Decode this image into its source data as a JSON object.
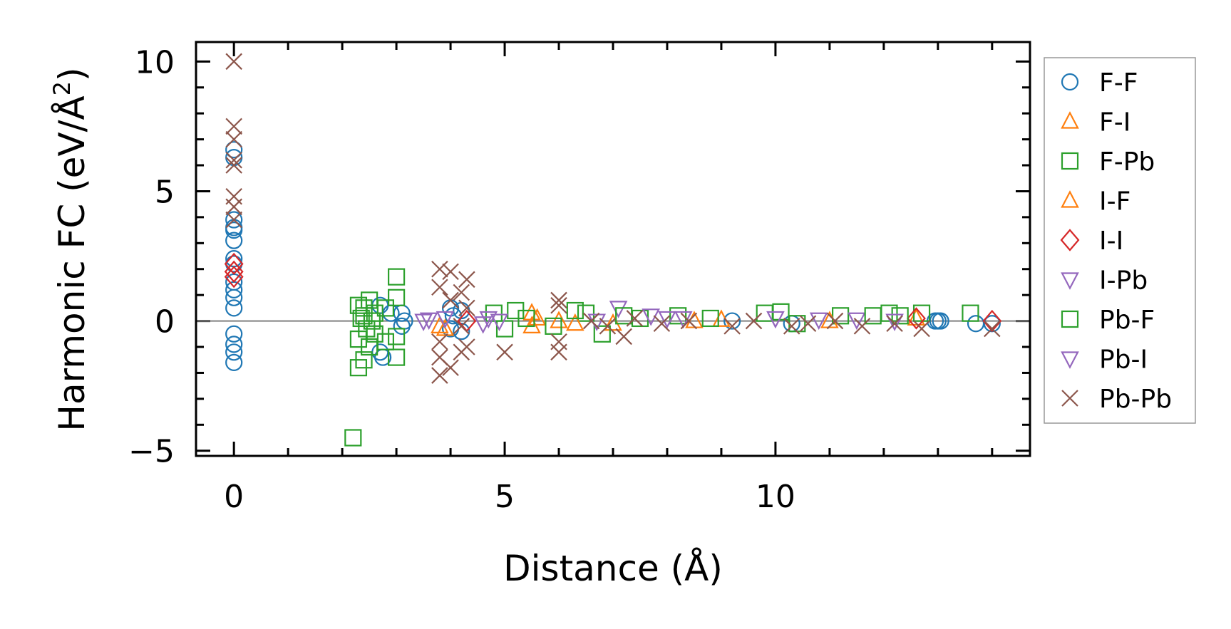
{
  "chart_data": {
    "type": "scatter",
    "title": "",
    "xlabel": "Distance (Å)",
    "ylabel": "Harmonic FC (eV/Å²)",
    "ylabel_parts": {
      "main": "Harmonic FC (eV/Å",
      "sup": "2",
      "close": ")"
    },
    "xlim": [
      -0.7,
      14.7
    ],
    "ylim": [
      -5.2,
      10.75
    ],
    "xticks": [
      0,
      5,
      10
    ],
    "xtick_labels": [
      "0",
      "5",
      "10"
    ],
    "yticks": [
      -5,
      0,
      5,
      10
    ],
    "ytick_labels": [
      "−5",
      "0",
      "5",
      "10"
    ],
    "zero_line": 0,
    "grid": false,
    "legend_position": "outside-right",
    "series": [
      {
        "name": "F-F",
        "marker": "circle",
        "color": "#1f77b4",
        "points": [
          [
            0,
            6.6
          ],
          [
            0,
            6.3
          ],
          [
            0,
            3.9
          ],
          [
            0,
            3.6
          ],
          [
            0,
            3.5
          ],
          [
            0,
            3.1
          ],
          [
            0,
            2.4
          ],
          [
            0,
            2.2
          ],
          [
            0,
            1.5
          ],
          [
            0,
            1.2
          ],
          [
            0,
            0.9
          ],
          [
            0,
            0.5
          ],
          [
            0,
            -0.5
          ],
          [
            0,
            -0.9
          ],
          [
            0,
            -1.2
          ],
          [
            0,
            -1.6
          ],
          [
            2.7,
            0.6
          ],
          [
            2.7,
            -1.2
          ],
          [
            2.75,
            -1.4
          ],
          [
            2.9,
            0.3
          ],
          [
            3.1,
            0.3
          ],
          [
            3.15,
            0
          ],
          [
            3.1,
            -0.2
          ],
          [
            4.0,
            0.5
          ],
          [
            4.05,
            0.2
          ],
          [
            4.0,
            -0.3
          ],
          [
            4.2,
            0.4
          ],
          [
            4.2,
            -0.4
          ],
          [
            9.2,
            0
          ],
          [
            10.3,
            -0.1
          ],
          [
            12.95,
            0
          ],
          [
            13.0,
            0
          ],
          [
            13.05,
            0
          ],
          [
            13.7,
            -0.1
          ],
          [
            14.0,
            -0.1
          ]
        ]
      },
      {
        "name": "F-I",
        "marker": "triangle-up",
        "color": "#ff7f0e",
        "points": [
          [
            3.8,
            -0.2
          ],
          [
            5.5,
            0.3
          ],
          [
            5.5,
            -0.2
          ],
          [
            6.0,
            0
          ],
          [
            7.0,
            -0.1
          ],
          [
            8.5,
            0
          ],
          [
            12.6,
            0.1
          ]
        ]
      },
      {
        "name": "F-Pb",
        "marker": "square",
        "color": "#2ca02c",
        "points": [
          [
            2.2,
            -4.5
          ],
          [
            2.3,
            -0.7
          ],
          [
            2.3,
            -1.8
          ],
          [
            2.3,
            0.6
          ],
          [
            2.4,
            0.5
          ],
          [
            2.4,
            -1.5
          ],
          [
            2.4,
            0.2
          ],
          [
            2.5,
            0.8
          ],
          [
            2.5,
            -1.0
          ],
          [
            2.6,
            0.3
          ],
          [
            2.6,
            -0.5
          ],
          [
            2.8,
            0.5
          ],
          [
            2.8,
            -0.8
          ],
          [
            3.0,
            1.7
          ],
          [
            3.0,
            0.9
          ],
          [
            3.0,
            -1.4
          ],
          [
            3.0,
            -0.6
          ],
          [
            4.8,
            0.3
          ],
          [
            5.0,
            -0.3
          ],
          [
            5.2,
            0.4
          ],
          [
            6.5,
            0.3
          ],
          [
            6.8,
            -0.5
          ],
          [
            7.5,
            0.1
          ],
          [
            8.2,
            0.2
          ],
          [
            9.8,
            0.3
          ],
          [
            10.1,
            0.35
          ],
          [
            11.2,
            0.2
          ],
          [
            12.1,
            0.3
          ],
          [
            12.7,
            0.3
          ],
          [
            13.6,
            0.3
          ]
        ]
      },
      {
        "name": "I-F",
        "marker": "triangle-up",
        "color": "#ff7f0e",
        "points": [
          [
            3.9,
            -0.3
          ],
          [
            5.6,
            0.1
          ],
          [
            6.3,
            -0.1
          ],
          [
            9.0,
            0.05
          ],
          [
            11.0,
            0
          ]
        ]
      },
      {
        "name": "I-I",
        "marker": "diamond",
        "color": "#d62728",
        "points": [
          [
            0,
            2.2
          ],
          [
            0,
            1.9
          ],
          [
            0,
            1.7
          ],
          [
            4.3,
            0.0
          ],
          [
            12.6,
            0.1
          ],
          [
            14.0,
            0.0
          ]
        ]
      },
      {
        "name": "I-Pb",
        "marker": "triangle-down",
        "color": "#9467bd",
        "points": [
          [
            3.5,
            0
          ],
          [
            3.9,
            0.1
          ],
          [
            4.6,
            -0.1
          ],
          [
            4.9,
            0
          ],
          [
            7.1,
            0.5
          ],
          [
            7.7,
            0.2
          ],
          [
            8.3,
            0.1
          ],
          [
            10.0,
            0.1
          ],
          [
            11.5,
            0.05
          ]
        ]
      },
      {
        "name": "Pb-F",
        "marker": "square",
        "color": "#2ca02c",
        "points": [
          [
            2.35,
            0.1
          ],
          [
            2.45,
            -0.3
          ],
          [
            2.55,
            0.0
          ],
          [
            5.4,
            0.1
          ],
          [
            5.9,
            -0.2
          ],
          [
            6.3,
            0.4
          ],
          [
            7.2,
            0.2
          ],
          [
            8.8,
            0.1
          ],
          [
            10.4,
            -0.1
          ],
          [
            11.8,
            0.2
          ],
          [
            12.3,
            0.2
          ]
        ]
      },
      {
        "name": "Pb-I",
        "marker": "triangle-down",
        "color": "#9467bd",
        "points": [
          [
            3.6,
            0.05
          ],
          [
            4.7,
            0.1
          ],
          [
            6.7,
            0
          ],
          [
            8.0,
            0.1
          ],
          [
            10.8,
            0.05
          ],
          [
            12.2,
            0
          ]
        ]
      },
      {
        "name": "Pb-Pb",
        "marker": "x",
        "color": "#8c564b",
        "points": [
          [
            0,
            10
          ],
          [
            0,
            7.5
          ],
          [
            0,
            7.0
          ],
          [
            0,
            6.2
          ],
          [
            0,
            6.0
          ],
          [
            0,
            4.8
          ],
          [
            0,
            4.4
          ],
          [
            0,
            3.9
          ],
          [
            3.8,
            2.0
          ],
          [
            3.8,
            1.3
          ],
          [
            3.8,
            -0.8
          ],
          [
            3.8,
            -1.4
          ],
          [
            3.8,
            -2.1
          ],
          [
            4.0,
            1.9
          ],
          [
            4.0,
            -1.8
          ],
          [
            4.0,
            0.8
          ],
          [
            4.2,
            1.1
          ],
          [
            4.2,
            -0.2
          ],
          [
            4.2,
            -1.2
          ],
          [
            4.3,
            1.6
          ],
          [
            4.3,
            -1.0
          ],
          [
            4.3,
            0.5
          ],
          [
            5.0,
            -1.2
          ],
          [
            6.0,
            0.8
          ],
          [
            6.0,
            0.6
          ],
          [
            6.0,
            -0.8
          ],
          [
            6.0,
            -1.2
          ],
          [
            6.6,
            0
          ],
          [
            6.9,
            -0.2
          ],
          [
            7.2,
            -0.6
          ],
          [
            7.4,
            0.1
          ],
          [
            7.9,
            -0.1
          ],
          [
            8.4,
            0
          ],
          [
            9.2,
            -0.2
          ],
          [
            9.6,
            0
          ],
          [
            10.3,
            -0.2
          ],
          [
            10.6,
            -0.1
          ],
          [
            11.1,
            0
          ],
          [
            11.6,
            -0.2
          ],
          [
            12.2,
            -0.1
          ],
          [
            12.7,
            -0.3
          ],
          [
            14.0,
            -0.3
          ]
        ]
      }
    ]
  }
}
